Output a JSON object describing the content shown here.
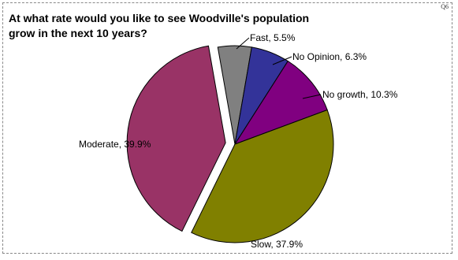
{
  "question_id": "Q6",
  "chart_data": {
    "type": "pie",
    "title": "At what rate would you like to see Woodville's population grow in the next 10 years?",
    "slices": [
      {
        "label": "Fast, 5.5%",
        "category": "Fast",
        "value": 5.5,
        "color": "#808080",
        "exploded": false
      },
      {
        "label": "No Opinion, 6.3%",
        "category": "No Opinion",
        "value": 6.3,
        "color": "#333399",
        "exploded": false
      },
      {
        "label": "No growth, 10.3%",
        "category": "No growth",
        "value": 10.3,
        "color": "#800080",
        "exploded": false
      },
      {
        "label": "Slow, 37.9%",
        "category": "Slow",
        "value": 37.9,
        "color": "#808000",
        "exploded": false
      },
      {
        "label": "Moderate, 39.9%",
        "category": "Moderate",
        "value": 39.9,
        "color": "#993366",
        "exploded": true
      }
    ],
    "start_angle_deg": -10,
    "direction": "clockwise",
    "edge_color": "#000000"
  }
}
